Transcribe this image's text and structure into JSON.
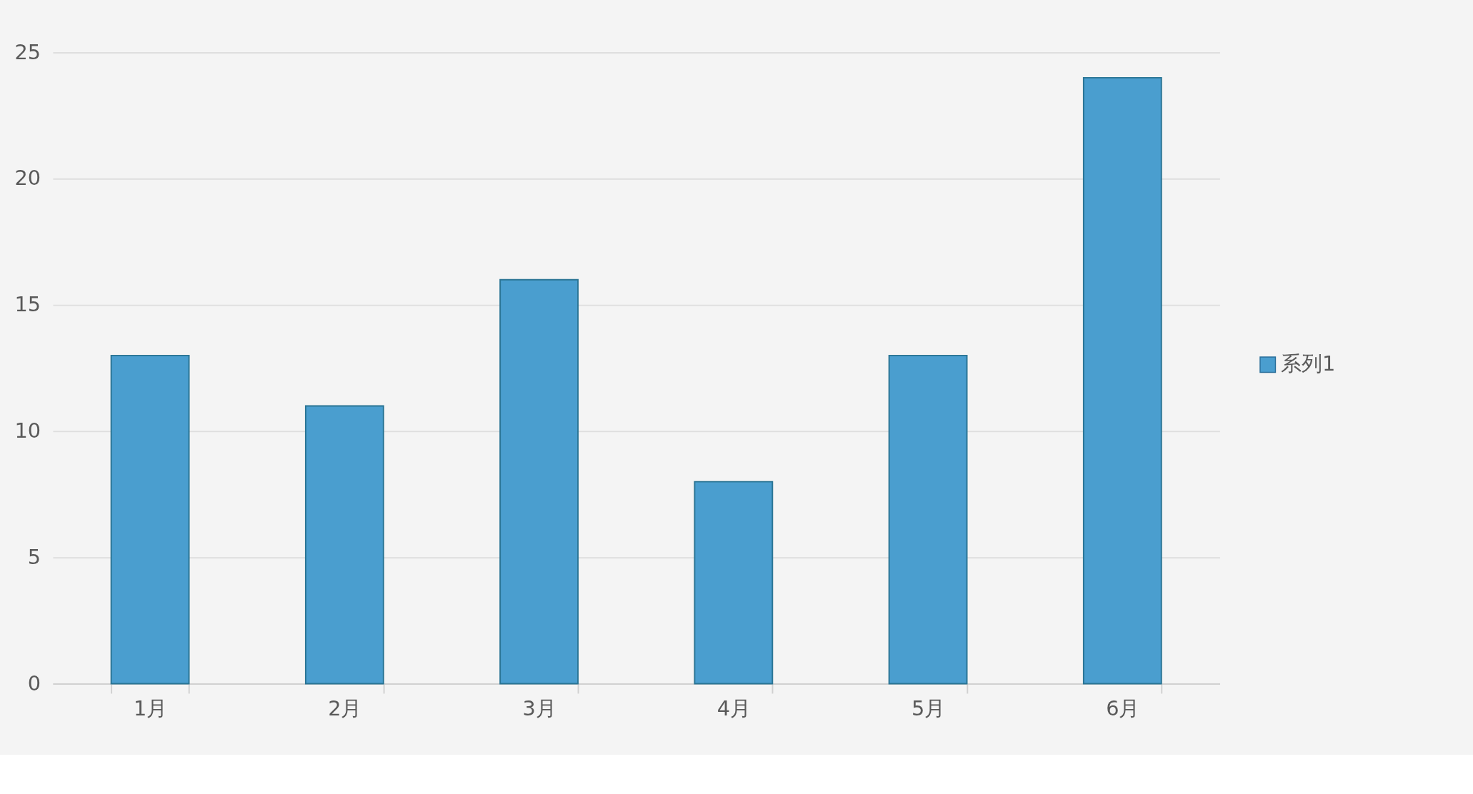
{
  "chart_data": {
    "type": "bar",
    "categories": [
      "1月",
      "2月",
      "3月",
      "4月",
      "5月",
      "6月"
    ],
    "series": [
      {
        "name": "系列1",
        "color": "#4a9ecf",
        "values": [
          13,
          11,
          16,
          8,
          13,
          24
        ]
      }
    ],
    "ylim": [
      0,
      25
    ],
    "yticks": [
      0,
      5,
      10,
      15,
      20,
      25
    ],
    "grid": "y",
    "legend": "right"
  }
}
